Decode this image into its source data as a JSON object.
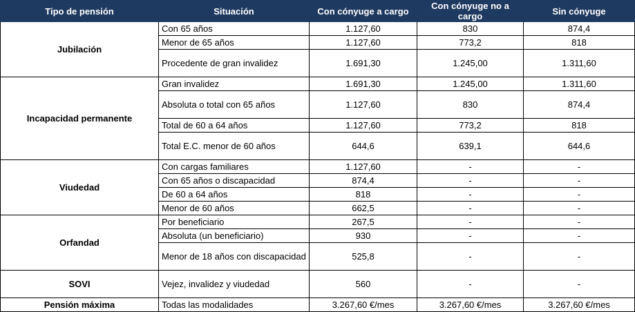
{
  "table": {
    "header": [
      "Tipo de pensión",
      "Situación",
      "Con cónyuge a cargo",
      "Con cónyuge no a cargo",
      "Sin cónyuge"
    ],
    "groups": [
      {
        "label": "Jubilación",
        "rows": [
          [
            "Con 65 años",
            "1.127,60",
            "830",
            "874,4"
          ],
          [
            "Menor de 65 años",
            "1.127,60",
            "773,2",
            "818"
          ],
          [
            "Procedente de gran invalidez",
            "1.691,30",
            "1.245,00",
            "1.311,60"
          ]
        ]
      },
      {
        "label": "Incapacidad permanente",
        "rows": [
          [
            "Gran invalidez",
            "1.691,30",
            "1.245,00",
            "1.311,60"
          ],
          [
            "Absoluta o total con 65 años",
            "1.127,60",
            "830",
            "874,4"
          ],
          [
            "Total de 60 a 64 años",
            "1.127,60",
            "773,2",
            "818"
          ],
          [
            "Total E.C. menor de 60 años",
            "644,6",
            "639,1",
            "644,6"
          ]
        ]
      },
      {
        "label": "Viudedad",
        "rows": [
          [
            "Con cargas familiares",
            "1.127,60",
            "-",
            "-"
          ],
          [
            "Con 65 años o discapacidad",
            "874,4",
            "-",
            "-"
          ],
          [
            "De 60 a 64 años",
            "818",
            "-",
            "-"
          ],
          [
            "Menor de 60 años",
            "662,5",
            "-",
            "-"
          ]
        ]
      },
      {
        "label": "Orfandad",
        "rows": [
          [
            "Por beneficiario",
            "267,5",
            "-",
            "-"
          ],
          [
            "Absoluta (un beneficiario)",
            "930",
            "-",
            "-"
          ],
          [
            "Menor de 18 años con discapacidad",
            "525,8",
            "-",
            "-"
          ]
        ]
      },
      {
        "label": "SOVI",
        "rows": [
          [
            "Vejez, invalidez y viudedad",
            "560",
            "-",
            "-"
          ]
        ]
      },
      {
        "label": "Pensión máxima",
        "rows": [
          [
            "Todas las modalidades",
            "3.267,60 €/mes",
            "3.267,60 €/mes",
            "3.267,60 €/mes"
          ]
        ]
      }
    ]
  }
}
